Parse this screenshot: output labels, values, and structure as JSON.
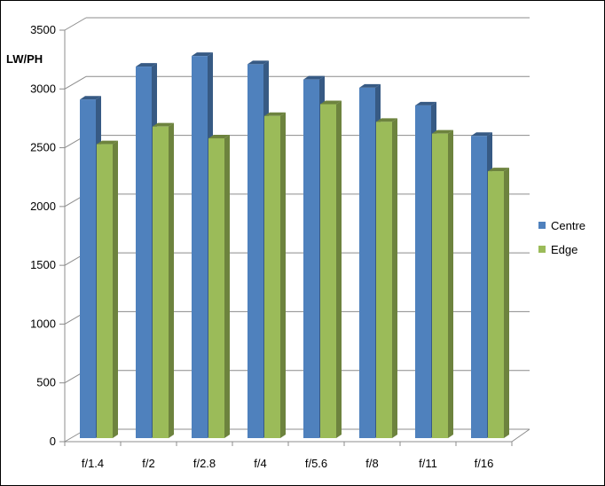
{
  "chart_data": {
    "type": "bar",
    "title": "",
    "xlabel": "",
    "ylabel": "LW/PH",
    "categories": [
      "f/1.4",
      "f/2",
      "f/2.8",
      "f/4",
      "f/5.6",
      "f/8",
      "f/11",
      "f/16"
    ],
    "series": [
      {
        "name": "Centre",
        "values": [
          2880,
          3160,
          3250,
          3180,
          3050,
          2980,
          2830,
          2570
        ],
        "color": "#4f81bd"
      },
      {
        "name": "Edge",
        "values": [
          2500,
          2650,
          2550,
          2740,
          2840,
          2690,
          2590,
          2270
        ],
        "color": "#9bbb59"
      }
    ],
    "ylim": [
      0,
      3500
    ],
    "yticks": [
      "0",
      "500",
      "1000",
      "1500",
      "2000",
      "2500",
      "3000",
      "3500"
    ],
    "grid": true,
    "legend_position": "right",
    "three_d": true
  }
}
